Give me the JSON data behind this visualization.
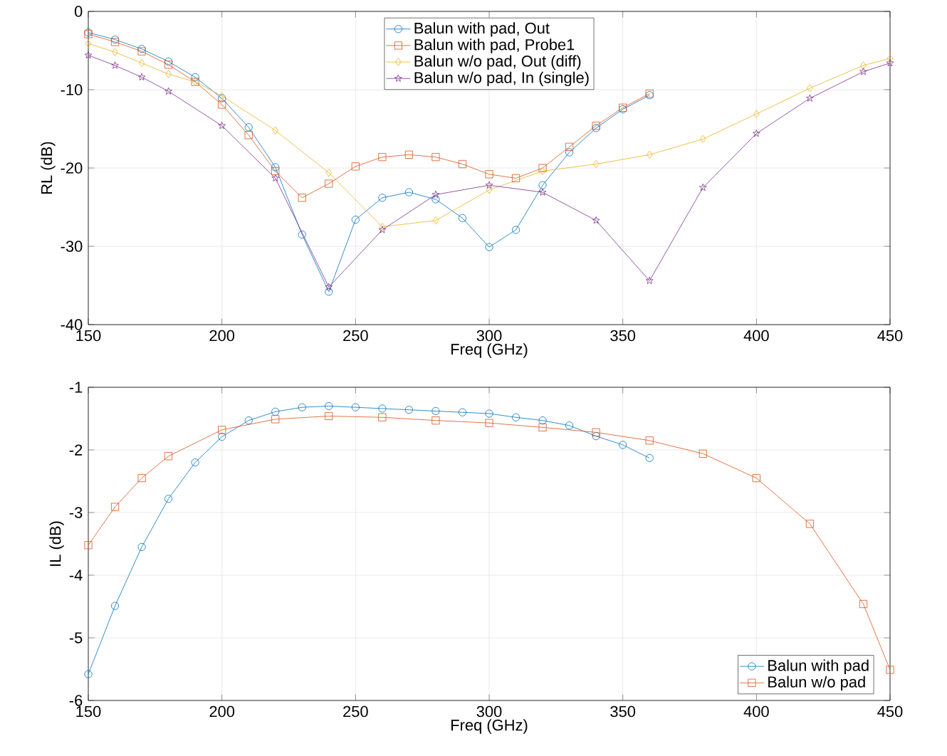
{
  "chart_data": [
    {
      "type": "line",
      "xlabel": "Freq (GHz)",
      "ylabel": "RL (dB)",
      "xlim": [
        150,
        450
      ],
      "ylim": [
        -40,
        0
      ],
      "xticks": [
        150,
        200,
        250,
        300,
        350,
        400,
        450
      ],
      "yticks": [
        -40,
        -30,
        -20,
        -10,
        0
      ],
      "grid": true,
      "legend": "top",
      "series": [
        {
          "name": "Balun with pad, Out",
          "color": "#0072bd",
          "marker": "circle",
          "x": [
            150,
            160,
            170,
            180,
            190,
            200,
            210,
            220,
            230,
            240,
            250,
            260,
            270,
            280,
            290,
            300,
            310,
            320,
            330,
            340,
            350,
            360
          ],
          "values": [
            -2.7,
            -3.6,
            -4.8,
            -6.4,
            -8.4,
            -11.1,
            -14.8,
            -19.9,
            -28.5,
            -35.8,
            -26.6,
            -23.8,
            -23.1,
            -24.0,
            -26.4,
            -30.1,
            -27.9,
            -22.2,
            -18.0,
            -14.9,
            -12.5,
            -10.7
          ]
        },
        {
          "name": "Balun with pad, Probe1",
          "color": "#d95319",
          "marker": "square",
          "x": [
            150,
            160,
            170,
            180,
            190,
            200,
            210,
            220,
            230,
            240,
            250,
            260,
            270,
            280,
            290,
            300,
            310,
            320,
            330,
            340,
            350,
            360
          ],
          "values": [
            -2.9,
            -3.9,
            -5.1,
            -6.8,
            -9.0,
            -11.9,
            -15.8,
            -20.4,
            -23.8,
            -22.0,
            -19.8,
            -18.6,
            -18.3,
            -18.6,
            -19.5,
            -20.8,
            -21.3,
            -20.0,
            -17.3,
            -14.6,
            -12.3,
            -10.5
          ]
        },
        {
          "name": "Balun w/o pad, Out (diff)",
          "color": "#edb120",
          "marker": "diamond",
          "x": [
            150,
            160,
            170,
            180,
            190,
            200,
            220,
            240,
            260,
            280,
            300,
            320,
            340,
            360,
            380,
            400,
            420,
            440,
            450
          ],
          "values": [
            -4.1,
            -5.2,
            -6.6,
            -8.0,
            -9.0,
            -10.8,
            -15.2,
            -20.6,
            -27.5,
            -26.7,
            -22.8,
            -20.4,
            -19.5,
            -18.3,
            -16.3,
            -13.1,
            -9.8,
            -6.9,
            -6.0
          ]
        },
        {
          "name": "Balun w/o pad, In (single)",
          "color": "#7e2f8e",
          "marker": "star",
          "x": [
            150,
            160,
            170,
            180,
            200,
            220,
            240,
            260,
            280,
            300,
            320,
            340,
            360,
            380,
            400,
            420,
            440,
            450
          ],
          "values": [
            -5.6,
            -6.9,
            -8.4,
            -10.2,
            -14.6,
            -21.3,
            -35.2,
            -27.9,
            -23.4,
            -22.2,
            -23.1,
            -26.7,
            -34.4,
            -22.5,
            -15.6,
            -11.1,
            -7.7,
            -6.6
          ]
        }
      ]
    },
    {
      "type": "line",
      "xlabel": "Freq (GHz)",
      "ylabel": "IL (dB)",
      "xlim": [
        150,
        450
      ],
      "ylim": [
        -6,
        -1
      ],
      "xticks": [
        150,
        200,
        250,
        300,
        350,
        400,
        450
      ],
      "yticks": [
        -6,
        -5,
        -4,
        -3,
        -2,
        -1
      ],
      "grid": true,
      "legend": "bottom right",
      "series": [
        {
          "name": "Balun with pad",
          "color": "#0072bd",
          "marker": "circle",
          "x": [
            150,
            160,
            170,
            180,
            190,
            200,
            210,
            220,
            230,
            240,
            250,
            260,
            270,
            280,
            290,
            300,
            310,
            320,
            330,
            340,
            350,
            360
          ],
          "values": [
            -5.58,
            -4.49,
            -3.55,
            -2.78,
            -2.2,
            -1.79,
            -1.53,
            -1.39,
            -1.32,
            -1.3,
            -1.32,
            -1.34,
            -1.36,
            -1.38,
            -1.4,
            -1.42,
            -1.48,
            -1.53,
            -1.61,
            -1.78,
            -1.92,
            -2.13
          ]
        },
        {
          "name": "Balun w/o pad",
          "color": "#d95319",
          "marker": "square",
          "x": [
            150,
            160,
            170,
            180,
            200,
            220,
            240,
            260,
            280,
            300,
            320,
            340,
            360,
            380,
            400,
            420,
            440,
            450
          ],
          "values": [
            -3.52,
            -2.91,
            -2.45,
            -2.1,
            -1.68,
            -1.51,
            -1.46,
            -1.48,
            -1.53,
            -1.57,
            -1.64,
            -1.72,
            -1.85,
            -2.06,
            -2.45,
            -3.18,
            -4.46,
            -5.51
          ]
        }
      ]
    }
  ]
}
